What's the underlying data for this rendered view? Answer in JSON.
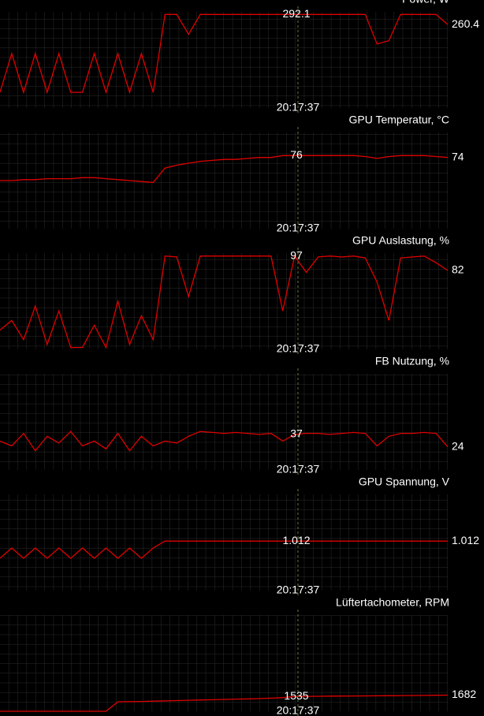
{
  "chart_data": [
    {
      "type": "line",
      "title": "Power, W",
      "color": "#e00000",
      "ylim": [
        0,
        300
      ],
      "cursor_value": 292.1,
      "last_value": 260.4,
      "cursor_time": "20:17:37",
      "values": [
        49,
        170,
        49,
        170,
        49,
        170,
        49,
        49,
        170,
        49,
        170,
        49,
        170,
        49,
        292,
        292,
        230,
        292,
        292,
        292,
        292,
        292,
        292,
        292,
        292,
        292,
        292,
        292,
        292,
        292,
        292,
        292,
        200,
        210,
        292,
        292,
        292,
        292,
        260.4
      ]
    },
    {
      "type": "line",
      "title": "GPU Temperatur, °C",
      "color": "#e00000",
      "ylim": [
        0,
        100
      ],
      "cursor_value": 76,
      "last_value": 74,
      "cursor_time": "20:17:37",
      "values": [
        50,
        50,
        51,
        51,
        52,
        52,
        52,
        53,
        53,
        52,
        51,
        50,
        49,
        48,
        63,
        66,
        68,
        70,
        71,
        72,
        72,
        73,
        74,
        74,
        76,
        76,
        76,
        76,
        76,
        76,
        76,
        75,
        73,
        75,
        76,
        76,
        76,
        75,
        74
      ]
    },
    {
      "type": "line",
      "title": "GPU Auslastung, %",
      "color": "#e00000",
      "ylim": [
        0,
        100
      ],
      "cursor_value": 97,
      "last_value": 82,
      "cursor_time": "20:17:37",
      "values": [
        20,
        30,
        10,
        45,
        5,
        40,
        2,
        2,
        25,
        2,
        50,
        5,
        35,
        10,
        97,
        96,
        55,
        97,
        97,
        97,
        97,
        97,
        97,
        97,
        40,
        97,
        80,
        96,
        97,
        96,
        97,
        95,
        70,
        30,
        95,
        96,
        97,
        90,
        82
      ]
    },
    {
      "type": "line",
      "title": "FB Nutzung, %",
      "color": "#e00000",
      "ylim": [
        0,
        100
      ],
      "cursor_value": 37,
      "last_value": 24,
      "cursor_time": "20:17:37",
      "values": [
        30,
        25,
        38,
        20,
        35,
        28,
        40,
        25,
        30,
        22,
        38,
        20,
        35,
        25,
        30,
        28,
        35,
        40,
        39,
        38,
        39,
        38,
        37,
        38,
        30,
        37,
        38,
        38,
        37,
        38,
        39,
        38,
        25,
        35,
        38,
        38,
        39,
        38,
        24
      ]
    },
    {
      "type": "line",
      "title": "GPU Spannung, V",
      "color": "#e00000",
      "ylim": [
        0.6,
        1.4
      ],
      "cursor_value": 1.012,
      "last_value": 1.012,
      "cursor_time": "20:17:37",
      "values": [
        0.869,
        0.954,
        0.869,
        0.954,
        0.869,
        0.954,
        0.869,
        0.954,
        0.869,
        0.954,
        0.869,
        0.954,
        0.869,
        0.954,
        1.012,
        1.012,
        1.012,
        1.012,
        1.012,
        1.012,
        1.012,
        1.012,
        1.012,
        1.012,
        1.012,
        1.012,
        1.012,
        1.012,
        1.012,
        1.012,
        1.012,
        1.012,
        1.012,
        1.012,
        1.012,
        1.012,
        1.012,
        1.012,
        1.012
      ]
    },
    {
      "type": "line",
      "title": "Lüftertachometer, RPM",
      "color": "#e00000",
      "ylim": [
        0,
        10000
      ],
      "cursor_value": 1535,
      "last_value": 1682,
      "cursor_time": "20:17:37",
      "values": [
        0,
        0,
        0,
        0,
        0,
        0,
        0,
        0,
        0,
        0,
        980,
        1000,
        1020,
        1050,
        1080,
        1110,
        1140,
        1170,
        1200,
        1230,
        1260,
        1290,
        1320,
        1360,
        1420,
        1535,
        1550,
        1560,
        1570,
        1580,
        1590,
        1600,
        1610,
        1620,
        1630,
        1640,
        1650,
        1665,
        1682
      ]
    }
  ]
}
